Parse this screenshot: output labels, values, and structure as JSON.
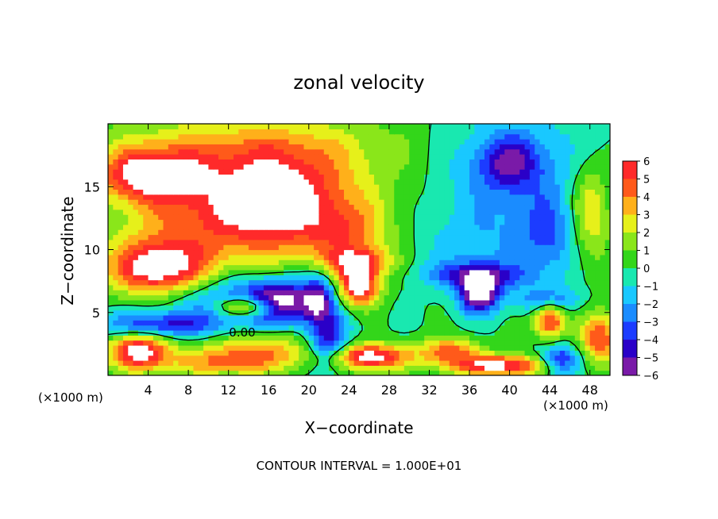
{
  "chart_data": {
    "type": "heatmap",
    "title": "zonal velocity",
    "xlabel": "X−coordinate",
    "ylabel": "Z−coordinate",
    "x_unit_left": "(×1000 m)",
    "x_unit_right": "(×1000 m)",
    "xlim": [
      0,
      50
    ],
    "ylim": [
      0,
      20
    ],
    "x_ticks": [
      4,
      8,
      12,
      16,
      20,
      24,
      28,
      32,
      36,
      40,
      44,
      48
    ],
    "x_tick_labels": [
      "4",
      "8",
      "12",
      "16",
      "20",
      "24",
      "28",
      "32",
      "36",
      "40",
      "44",
      "48"
    ],
    "y_ticks": [
      5,
      10,
      15
    ],
    "y_tick_labels": [
      "5",
      "10",
      "15"
    ],
    "footer": "CONTOUR INTERVAL = 1.000E+01",
    "contour_label": "0.00",
    "colorbar": {
      "min": -6,
      "max": 6,
      "tick_labels": [
        "6",
        "5",
        "4",
        "3",
        "2",
        "1",
        "0",
        "−1",
        "−2",
        "−3",
        "−4",
        "−5",
        "−6"
      ],
      "tick_values": [
        6,
        5,
        4,
        3,
        2,
        1,
        0,
        -1,
        -2,
        -3,
        -4,
        -5,
        -6
      ],
      "colors": [
        "#7a1aa8",
        "#2a00c8",
        "#1c3cff",
        "#1a8cff",
        "#19c8ff",
        "#19e8b0",
        "#33d61a",
        "#8ae61a",
        "#e6f01a",
        "#ffb01a",
        "#ff5a1a",
        "#ff2a2a",
        "#ff9a9a",
        "#ffffff"
      ]
    },
    "out_of_range_color": "#ffffff",
    "features": [
      {
        "x": 12,
        "z": 13,
        "value": 5,
        "extent": [
          10,
          4
        ]
      },
      {
        "x": 4,
        "z": 16,
        "value": 5.5,
        "extent": [
          5,
          2
        ]
      },
      {
        "x": 14,
        "z": 18,
        "value": 3,
        "extent": [
          14,
          3
        ]
      },
      {
        "x": 18,
        "z": 14,
        "value": 3.5,
        "extent": [
          6,
          4
        ]
      },
      {
        "x": 24,
        "z": 11,
        "value": 3,
        "extent": [
          4,
          3
        ]
      },
      {
        "x": 30,
        "z": 14,
        "value": 0.5,
        "extent": [
          8,
          6
        ]
      },
      {
        "x": 40,
        "z": 16,
        "value": -2.5,
        "extent": [
          8,
          5
        ]
      },
      {
        "x": 40,
        "z": 17,
        "value": -3.5,
        "extent": [
          3,
          2
        ]
      },
      {
        "x": 36,
        "z": 10,
        "value": -1.5,
        "extent": [
          6,
          3
        ]
      },
      {
        "x": 44,
        "z": 11,
        "value": -2.5,
        "extent": [
          3,
          3
        ]
      },
      {
        "x": 48,
        "z": 13,
        "value": 3.5,
        "extent": [
          2,
          4
        ]
      },
      {
        "x": 5,
        "z": 8.5,
        "value": 7,
        "extent": [
          5,
          2.2
        ]
      },
      {
        "x": 14,
        "z": 6,
        "value": -4,
        "extent": [
          8,
          2
        ]
      },
      {
        "x": 14,
        "z": 5.5,
        "value": 7,
        "extent": [
          3,
          0.8
        ]
      },
      {
        "x": 17,
        "z": 5.8,
        "value": -5,
        "extent": [
          3,
          1.5
        ]
      },
      {
        "x": 21,
        "z": 6,
        "value": -4.5,
        "extent": [
          1.5,
          2
        ]
      },
      {
        "x": 25,
        "z": 7,
        "value": 7,
        "extent": [
          2,
          1.5
        ]
      },
      {
        "x": 25,
        "z": 9,
        "value": 4.5,
        "extent": [
          3,
          1
        ]
      },
      {
        "x": 37,
        "z": 6.5,
        "value": -7,
        "extent": [
          2,
          1.5
        ]
      },
      {
        "x": 37,
        "z": 8,
        "value": -4,
        "extent": [
          5,
          1
        ]
      },
      {
        "x": 44,
        "z": 4.5,
        "value": 6,
        "extent": [
          1.5,
          1.5
        ]
      },
      {
        "x": 44,
        "z": 6,
        "value": -3.5,
        "extent": [
          3,
          1
        ]
      },
      {
        "x": 3,
        "z": 2,
        "value": 7,
        "extent": [
          3,
          1.5
        ]
      },
      {
        "x": 5,
        "z": 4,
        "value": -4.5,
        "extent": [
          6,
          1
        ]
      },
      {
        "x": 15,
        "z": 2,
        "value": 3.5,
        "extent": [
          6,
          1.5
        ]
      },
      {
        "x": 11,
        "z": 1,
        "value": 3,
        "extent": [
          6,
          1
        ]
      },
      {
        "x": 22,
        "z": 2.5,
        "value": -5,
        "extent": [
          2,
          2
        ]
      },
      {
        "x": 26,
        "z": 1.5,
        "value": 7,
        "extent": [
          4,
          1
        ]
      },
      {
        "x": 34,
        "z": 2,
        "value": 4.5,
        "extent": [
          3,
          1
        ]
      },
      {
        "x": 39,
        "z": 0.8,
        "value": 7,
        "extent": [
          5,
          0.8
        ]
      },
      {
        "x": 45,
        "z": 1.2,
        "value": -5,
        "extent": [
          2,
          1.2
        ]
      },
      {
        "x": 49,
        "z": 3,
        "value": 5,
        "extent": [
          2,
          2
        ]
      }
    ]
  }
}
